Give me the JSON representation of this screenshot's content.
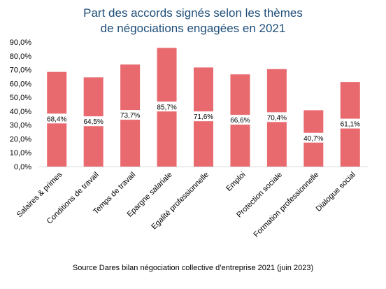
{
  "chart_data": {
    "type": "bar",
    "title_lines": [
      "Part des accords signés selon les thèmes",
      "de négociations engagées en 2021"
    ],
    "categories": [
      "Salaires & primes",
      "Conditions de travail",
      "Temps de travail",
      "Epargne salariale",
      "Egalité professionnelle",
      "Emploi",
      "Protection sociale",
      "Formation professionnelle",
      "Dialogue social"
    ],
    "values": [
      68.4,
      64.5,
      73.7,
      85.7,
      71.6,
      66.6,
      70.4,
      40.7,
      61.1
    ],
    "data_labels": [
      "68,4%",
      "64,5%",
      "73,7%",
      "85,7%",
      "71,6%",
      "66,6%",
      "70,4%",
      "40,7%",
      "61,1%"
    ],
    "y_ticks": [
      0,
      10,
      20,
      30,
      40,
      50,
      60,
      70,
      80,
      90
    ],
    "y_tick_labels": [
      "0,0%",
      "10,0%",
      "20,0%",
      "30,0%",
      "40,0%",
      "50,0%",
      "60,0%",
      "70,0%",
      "80,0%",
      "90,0%"
    ],
    "ylim": [
      0,
      90
    ],
    "grid": false,
    "bar_color": "#e8696e",
    "title_color": "#1f4e79",
    "xlabel": "",
    "ylabel": ""
  },
  "source": "Source Dares bilan négociation collective d’entreprise 2021 (juin 2023)"
}
